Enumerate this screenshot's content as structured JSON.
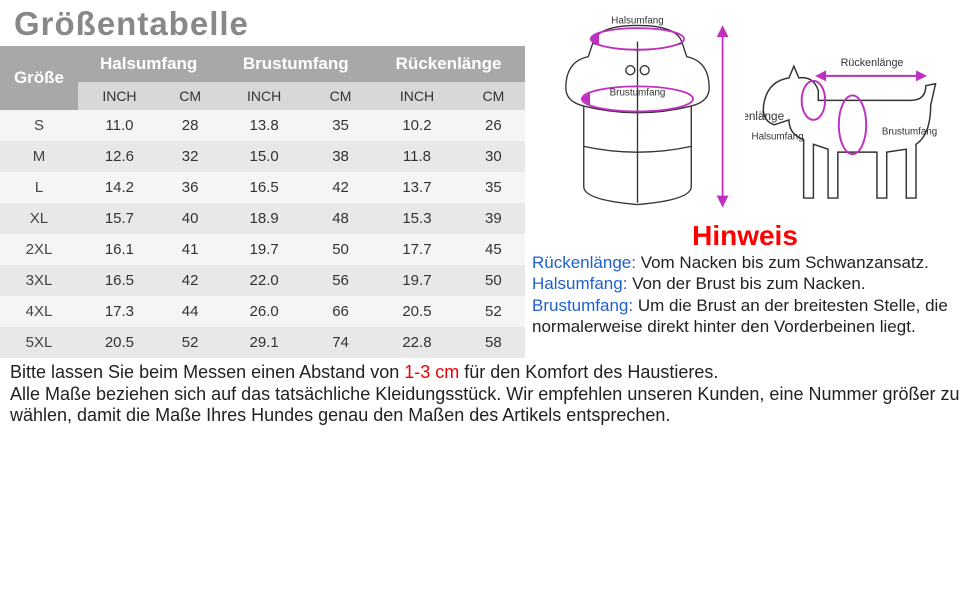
{
  "title": "Größentabelle",
  "columns": {
    "size": "Größe",
    "neck": "Halsumfang",
    "chest": "Brustumfang",
    "back": "Rückenlänge",
    "inch": "INCH",
    "cm": "CM"
  },
  "rows": [
    {
      "sz": "S",
      "ni": "11.0",
      "nc": "28",
      "ci": "13.8",
      "cc": "35",
      "bi": "10.2",
      "bc": "26"
    },
    {
      "sz": "M",
      "ni": "12.6",
      "nc": "32",
      "ci": "15.0",
      "cc": "38",
      "bi": "11.8",
      "bc": "30"
    },
    {
      "sz": "L",
      "ni": "14.2",
      "nc": "36",
      "ci": "16.5",
      "cc": "42",
      "bi": "13.7",
      "bc": "35"
    },
    {
      "sz": "XL",
      "ni": "15.7",
      "nc": "40",
      "ci": "18.9",
      "cc": "48",
      "bi": "15.3",
      "bc": "39"
    },
    {
      "sz": "2XL",
      "ni": "16.1",
      "nc": "41",
      "ci": "19.7",
      "cc": "50",
      "bi": "17.7",
      "bc": "45"
    },
    {
      "sz": "3XL",
      "ni": "16.5",
      "nc": "42",
      "ci": "22.0",
      "cc": "56",
      "bi": "19.7",
      "bc": "50"
    },
    {
      "sz": "4XL",
      "ni": "17.3",
      "nc": "44",
      "ci": "26.0",
      "cc": "66",
      "bi": "20.5",
      "bc": "52"
    },
    {
      "sz": "5XL",
      "ni": "20.5",
      "nc": "52",
      "ci": "29.1",
      "cc": "74",
      "bi": "22.8",
      "bc": "58"
    }
  ],
  "diagram_labels": {
    "vest_neck": "Halsumfang",
    "vest_chest": "Brustumfang",
    "vest_back": "Rückenlänge",
    "dog_neck": "Halsumfang",
    "dog_chest": "Brustumfang",
    "dog_back": "Rückenlänge"
  },
  "hint_title": "Hinweis",
  "hints": {
    "back_lbl": "Rückenlänge:",
    "back_txt": " Vom Nacken bis zum Schwanzansatz.",
    "neck_lbl": "Halsumfang:",
    "neck_txt": " Von der Brust bis zum Nacken.",
    "chest_lbl": "Brustumfang:",
    "chest_txt": " Um die Brust an der breitesten Stelle, die normalerweise direkt hinter den Vorderbeinen liegt."
  },
  "bottom": {
    "p1a": "Bitte lassen Sie beim Messen einen Abstand von ",
    "p1red": "1-3 cm",
    "p1b": " für den Komfort des Haustieres.",
    "p2": "Alle Maße beziehen sich auf das tatsächliche Kleidungsstück. Wir empfehlen unseren Kunden, eine Nummer größer zu wählen, damit die Maße Ihres Hundes genau den Maßen des Artikels entsprechen."
  },
  "colors": {
    "arrow": "#c030c0",
    "header_bg": "#a8a8a8",
    "sub_bg": "#d8d8d8",
    "red": "#f00",
    "blue": "#2060d0"
  }
}
